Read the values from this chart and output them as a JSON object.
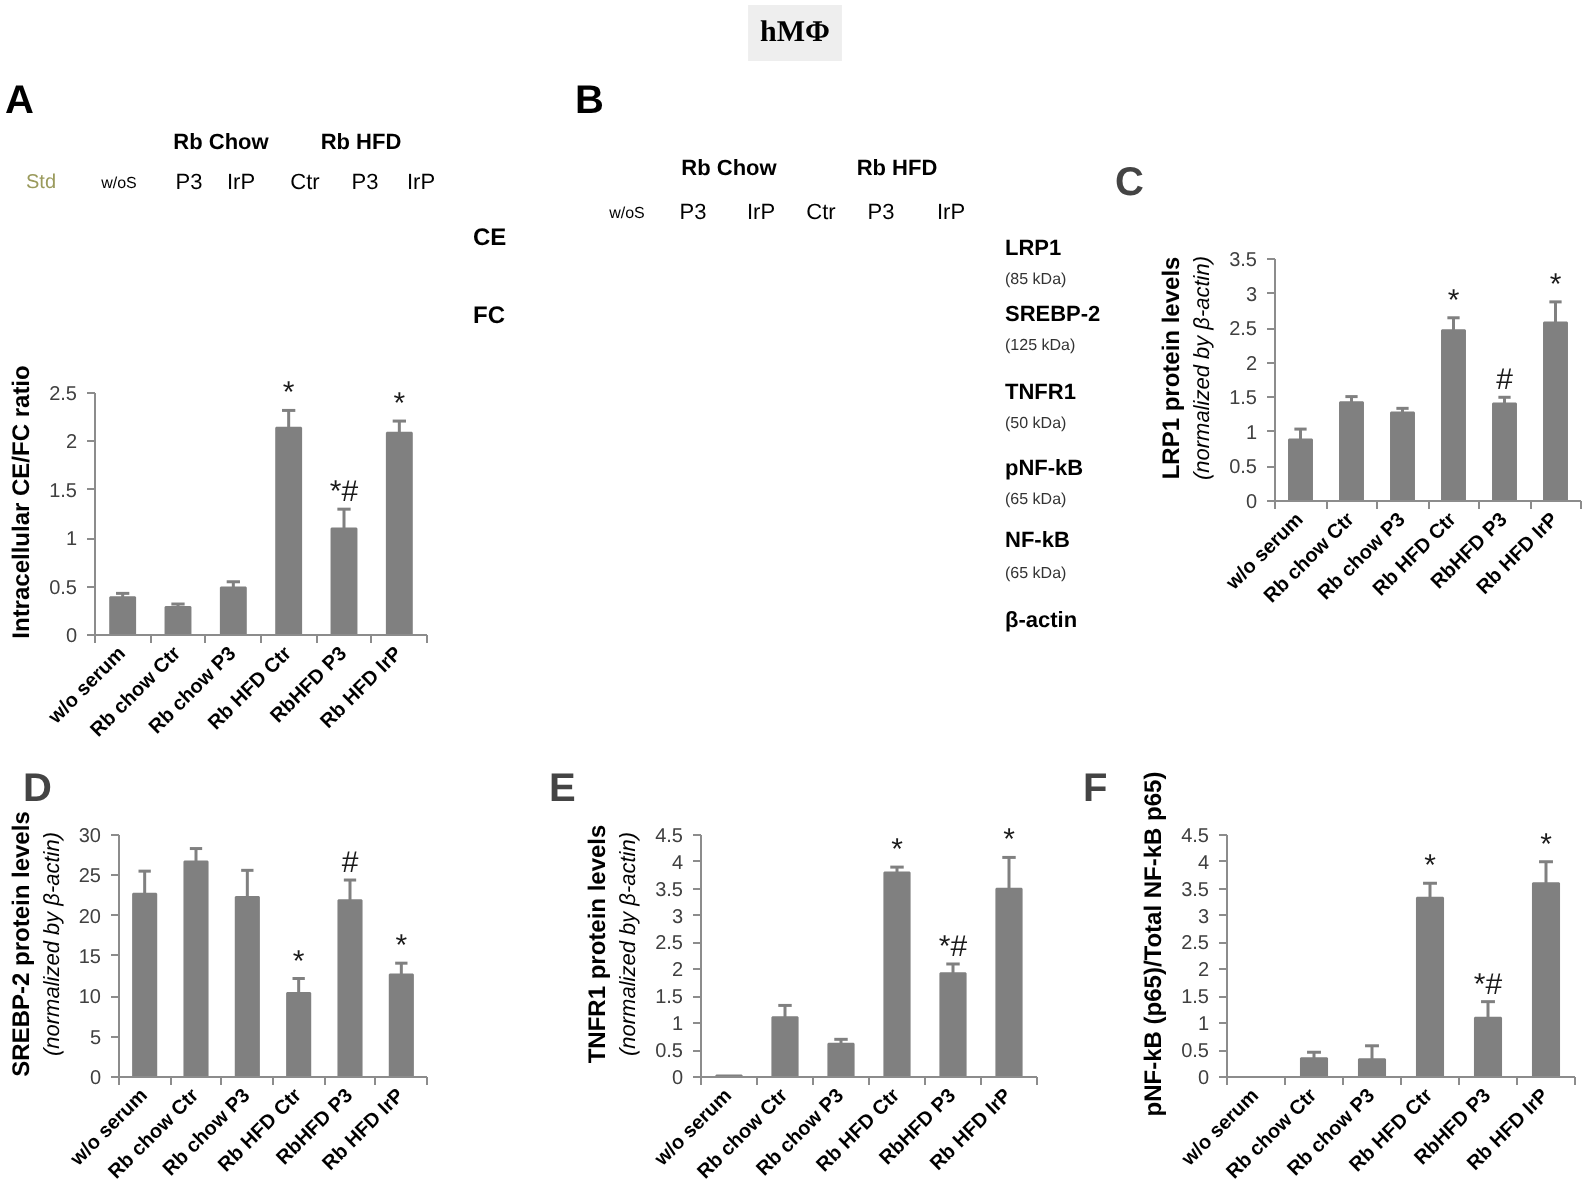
{
  "chart_data": [
    {
      "type": "other",
      "title": "hMΦ"
    },
    {
      "type": "other",
      "title": "A",
      "annotations": [
        "Rb Chow",
        "Rb HFD",
        "Std",
        "w/oS",
        "P3",
        "IrP",
        "Ctr",
        "P3",
        "IrP",
        "CE",
        "FC"
      ]
    },
    {
      "type": "bar",
      "ylabel": "Intracellular CE/FC ratio",
      "categories": [
        "w/o serum",
        "Rb chow Ctr",
        "Rb chow P3",
        "Rb HFD Ctr",
        "RbHFD P3",
        "Rb HFD IrP"
      ],
      "values": [
        0.39,
        0.29,
        0.49,
        2.14,
        1.1,
        2.09
      ],
      "color": "#808080",
      "errors": [
        [
          0.39,
          0.43
        ],
        [
          0.29,
          0.32
        ],
        [
          0.49,
          0.55
        ],
        [
          2.14,
          2.32
        ],
        [
          1.1,
          1.3
        ],
        [
          2.09,
          2.21
        ]
      ],
      "ylim": [
        0,
        2.5
      ],
      "yticks": [
        0,
        0.5,
        1,
        1.5,
        2,
        2.5
      ],
      "annotations": [
        {
          "text": "*",
          "x": "Rb HFD Ctr",
          "y": 2.32
        },
        {
          "text": "*#",
          "x": "RbHFD P3",
          "y": 1.3
        },
        {
          "text": "*",
          "x": "Rb HFD IrP",
          "y": 2.21
        }
      ]
    },
    {
      "type": "other",
      "title": "B",
      "annotations": [
        "Rb Chow",
        "Rb HFD",
        "w/oS",
        "P3",
        "IrP",
        "Ctr",
        "P3",
        "IrP",
        "LRP1",
        "(85 kDa)",
        "SREBP-2",
        "(125 kDa)",
        "TNFR1",
        "(50 kDa)",
        "pNF-kB",
        "(65 kDa)",
        "NF-kB",
        "(65 kDa)",
        "β-actin"
      ]
    },
    {
      "type": "bar",
      "title": "C",
      "ylabel": "LRP1 protein levels",
      "categories": [
        "w/o serum",
        "Rb chow Ctr",
        "Rb chow P3",
        "Rb HFD Ctr",
        "RbHFD P3",
        "Rb HFD IrP"
      ],
      "values": [
        0.89,
        1.43,
        1.28,
        2.47,
        1.41,
        2.58
      ],
      "color": "#808080",
      "errors": [
        [
          0.89,
          1.04
        ],
        [
          1.43,
          1.51
        ],
        [
          1.28,
          1.34
        ],
        [
          2.47,
          2.65
        ],
        [
          1.41,
          1.5
        ],
        [
          2.58,
          2.88
        ]
      ],
      "ylim": [
        0,
        3.5
      ],
      "yticks": [
        0,
        0.5,
        1,
        1.5,
        2,
        2.5,
        3,
        3.5
      ],
      "annotations": [
        "(normalized by β-actin)",
        {
          "text": "*",
          "x": "Rb HFD Ctr",
          "y": 2.65
        },
        {
          "text": "#",
          "x": "RbHFD P3",
          "y": 1.5
        },
        {
          "text": "*",
          "x": "Rb HFD IrP",
          "y": 2.88
        }
      ]
    },
    {
      "type": "bar",
      "title": "D",
      "ylabel": "SREBP-2 protein levels",
      "categories": [
        "w/o serum",
        "Rb chow Ctr",
        "Rb chow P3",
        "Rb HFD Ctr",
        "RbHFD P3",
        "Rb HFD IrP"
      ],
      "values": [
        22.7,
        26.7,
        22.3,
        10.4,
        21.9,
        12.7
      ],
      "color": "#808080",
      "errors": [
        [
          22.7,
          25.5
        ],
        [
          26.7,
          28.3
        ],
        [
          22.3,
          25.6
        ],
        [
          10.4,
          12.2
        ],
        [
          21.9,
          24.4
        ],
        [
          12.7,
          14.1
        ]
      ],
      "ylim": [
        0,
        30
      ],
      "yticks": [
        0,
        5,
        10,
        15,
        20,
        25,
        30
      ],
      "annotations": [
        "(normalized by β-actin)",
        {
          "text": "*",
          "x": "Rb HFD Ctr",
          "y": 12.2
        },
        {
          "text": "#",
          "x": "RbHFD P3",
          "y": 24.4
        },
        {
          "text": "*",
          "x": "Rb HFD IrP",
          "y": 14.1
        }
      ]
    },
    {
      "type": "bar",
      "title": "E",
      "ylabel": "TNFR1 protein levels",
      "categories": [
        "w/o serum",
        "Rb chow Ctr",
        "Rb chow P3",
        "Rb HFD Ctr",
        "RbHFD P3",
        "Rb HFD IrP"
      ],
      "values": [
        0.03,
        1.11,
        0.62,
        3.8,
        1.93,
        3.5
      ],
      "color": "#808080",
      "errors": [
        null,
        [
          1.11,
          1.33
        ],
        [
          0.62,
          0.7
        ],
        [
          3.8,
          3.9
        ],
        [
          1.93,
          2.1
        ],
        [
          3.5,
          4.08
        ]
      ],
      "ylim": [
        0,
        4.5
      ],
      "yticks": [
        0,
        0.5,
        1,
        1.5,
        2,
        2.5,
        3,
        3.5,
        4,
        4.5
      ],
      "annotations": [
        "(normalized by β-actin)",
        {
          "text": "*",
          "x": "Rb HFD Ctr",
          "y": 3.9
        },
        {
          "text": "*#",
          "x": "RbHFD P3",
          "y": 2.1
        },
        {
          "text": "*",
          "x": "Rb HFD IrP",
          "y": 4.08
        }
      ]
    },
    {
      "type": "bar",
      "title": "F",
      "ylabel": "pNF-kB (p65)/Total NF-kB p65)",
      "categories": [
        "w/o serum",
        "Rb chow Ctr",
        "Rb chow P3",
        "Rb HFD Ctr",
        "RbHFD P3",
        "Rb HFD IrP"
      ],
      "values": [
        0,
        0.35,
        0.33,
        3.33,
        1.1,
        3.6
      ],
      "color": "#808080",
      "errors": [
        null,
        [
          0.35,
          0.46
        ],
        [
          0.33,
          0.58
        ],
        [
          3.33,
          3.6
        ],
        [
          1.1,
          1.4
        ],
        [
          3.6,
          4.0
        ]
      ],
      "ylim": [
        0,
        4.5
      ],
      "yticks": [
        0,
        0.5,
        1,
        1.5,
        2,
        2.5,
        3,
        3.5,
        4,
        4.5
      ],
      "annotations": [
        {
          "text": "*",
          "x": "Rb HFD Ctr",
          "y": 3.6
        },
        {
          "text": "*#",
          "x": "RbHFD P3",
          "y": 1.4
        },
        {
          "text": "*",
          "x": "Rb HFD IrP",
          "y": 4.0
        }
      ]
    }
  ]
}
